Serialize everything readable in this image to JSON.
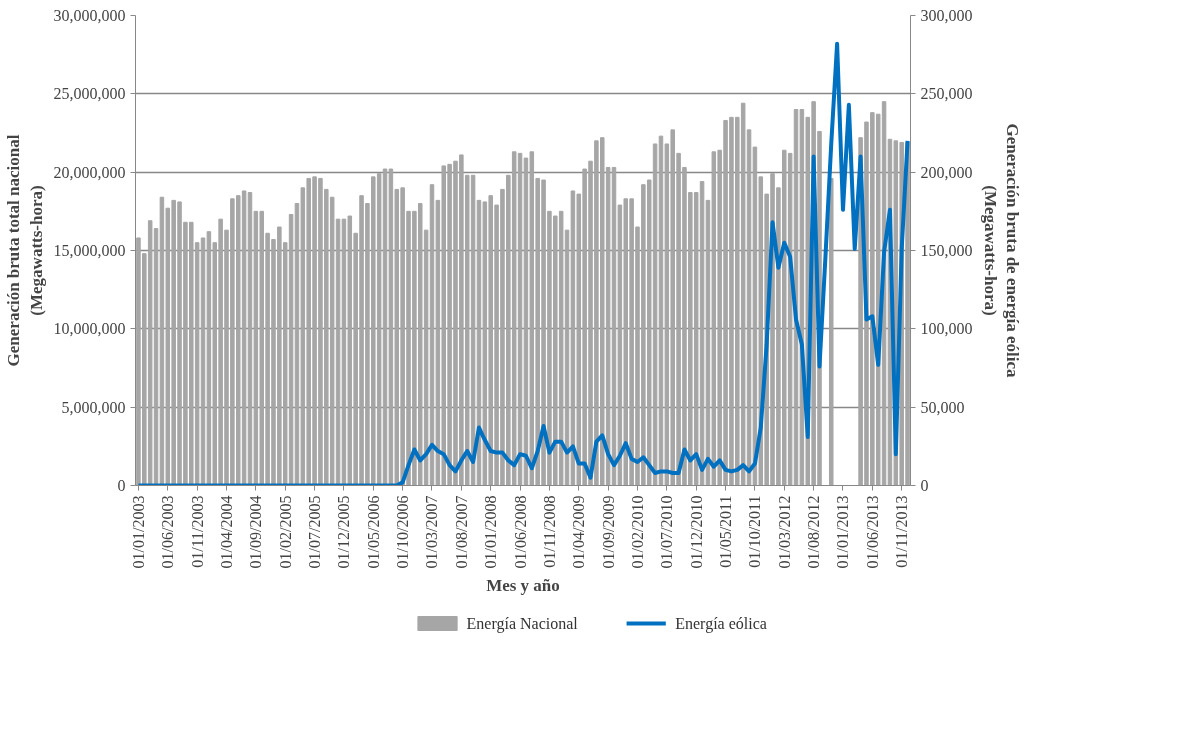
{
  "chart_data": {
    "type": "bar",
    "categories": [
      "01/01/2003",
      null,
      null,
      null,
      null,
      "01/06/2003",
      null,
      null,
      null,
      null,
      "01/11/2003",
      null,
      null,
      null,
      null,
      "01/04/2004",
      null,
      null,
      null,
      null,
      "01/09/2004",
      null,
      null,
      null,
      null,
      "01/02/2005",
      null,
      null,
      null,
      null,
      "01/07/2005",
      null,
      null,
      null,
      null,
      "01/12/2005",
      null,
      null,
      null,
      null,
      "01/05/2006",
      null,
      null,
      null,
      null,
      "01/10/2006",
      null,
      null,
      null,
      null,
      "01/03/2007",
      null,
      null,
      null,
      null,
      "01/08/2007",
      null,
      null,
      null,
      null,
      "01/01/2008",
      null,
      null,
      null,
      null,
      "01/06/2008",
      null,
      null,
      null,
      null,
      "01/11/2008",
      null,
      null,
      null,
      null,
      "01/04/2009",
      null,
      null,
      null,
      null,
      "01/09/2009",
      null,
      null,
      null,
      null,
      "01/02/2010",
      null,
      null,
      null,
      null,
      "01/07/2010",
      null,
      null,
      null,
      null,
      "01/12/2010",
      null,
      null,
      null,
      null,
      "01/05/2011",
      null,
      null,
      null,
      null,
      "01/10/2011",
      null,
      null,
      null,
      null,
      "01/03/2012",
      null,
      null,
      null,
      null,
      "01/08/2012",
      null,
      null,
      null,
      null,
      "01/01/2013",
      null,
      null,
      null,
      null,
      "01/06/2013",
      null,
      null,
      null,
      null,
      "01/11/2013",
      null
    ],
    "series": [
      {
        "name": "Energía Nacional",
        "color": "#a6a6a6",
        "values": [
          15800000,
          14800000,
          16900000,
          16400000,
          18400000,
          17700000,
          18200000,
          18100000,
          16800000,
          16800000,
          15500000,
          15800000,
          16200000,
          15500000,
          17000000,
          16300000,
          18300000,
          18500000,
          18800000,
          18700000,
          17500000,
          17500000,
          16100000,
          15700000,
          16500000,
          15500000,
          17300000,
          18000000,
          19000000,
          19600000,
          19700000,
          19600000,
          18900000,
          18400000,
          17000000,
          17000000,
          17200000,
          16100000,
          18500000,
          18000000,
          19700000,
          19900000,
          20200000,
          20200000,
          18900000,
          19000000,
          17500000,
          17500000,
          18000000,
          16300000,
          19200000,
          18200000,
          20400000,
          20500000,
          20700000,
          21100000,
          19800000,
          19800000,
          18200000,
          18100000,
          18500000,
          17900000,
          18900000,
          19800000,
          21300000,
          21200000,
          20900000,
          21300000,
          19600000,
          19500000,
          17500000,
          17200000,
          17500000,
          16300000,
          18800000,
          18600000,
          20200000,
          20700000,
          22000000,
          22200000,
          20300000,
          20300000,
          17900000,
          18300000,
          18300000,
          16500000,
          19200000,
          19500000,
          21800000,
          22300000,
          21800000,
          22700000,
          21200000,
          20300000,
          18700000,
          18700000,
          19400000,
          18200000,
          21300000,
          21400000,
          23300000,
          23500000,
          23500000,
          24400000,
          22700000,
          21600000,
          19700000,
          18600000,
          19900000,
          19000000,
          21400000,
          21200000,
          24000000,
          24000000,
          23500000,
          24500000,
          22600000,
          null,
          19600000,
          null,
          null,
          null,
          null,
          22200000,
          23200000,
          23800000,
          23700000,
          24500000,
          22100000,
          22000000,
          21900000,
          21900000
        ]
      },
      {
        "name": "Energía eólica",
        "type": "line",
        "axis": "y2",
        "color": "#0070c0",
        "values": [
          0,
          0,
          0,
          0,
          0,
          0,
          0,
          0,
          0,
          0,
          0,
          0,
          0,
          0,
          0,
          0,
          0,
          0,
          0,
          0,
          0,
          0,
          0,
          0,
          0,
          0,
          0,
          0,
          0,
          0,
          0,
          0,
          0,
          0,
          0,
          0,
          0,
          0,
          0,
          0,
          0,
          0,
          0,
          0,
          0,
          2000,
          13000,
          23000,
          16000,
          20000,
          26000,
          22000,
          20000,
          13000,
          9000,
          16000,
          22000,
          15000,
          37000,
          29000,
          22000,
          21000,
          21000,
          16000,
          13000,
          20000,
          19000,
          11000,
          22000,
          38000,
          21000,
          28000,
          28000,
          21000,
          25000,
          14000,
          14000,
          5000,
          28000,
          32000,
          20000,
          13000,
          19000,
          27000,
          17000,
          15000,
          18000,
          13000,
          8000,
          9000,
          9000,
          8000,
          8000,
          23000,
          16000,
          20000,
          10000,
          17000,
          12000,
          16000,
          10000,
          9000,
          10000,
          13000,
          9000,
          14000,
          37000,
          90000,
          168000,
          139000,
          155000,
          146000,
          106000,
          90000,
          31000,
          210000,
          76000,
          145000,
          218000,
          282000,
          176000,
          243000,
          151000,
          210000,
          106000,
          108000,
          77000,
          149000,
          176000,
          20000,
          151000,
          220000
        ]
      }
    ],
    "xlabel": "Mes y año",
    "ylabel": "Generación bruta total nacional\n(Megawatts-hora)",
    "y2label": "Generación bruta de energía eólica\n(Megawatts-hora)",
    "ylim": [
      0,
      30000000
    ],
    "yticks": [
      {
        "value": 0,
        "label": "0"
      },
      {
        "value": 5000000,
        "label": "5,000,000"
      },
      {
        "value": 10000000,
        "label": "10,000,000"
      },
      {
        "value": 15000000,
        "label": "15,000,000"
      },
      {
        "value": 20000000,
        "label": "20,000,000"
      },
      {
        "value": 25000000,
        "label": "25,000,000"
      },
      {
        "value": 30000000,
        "label": "30,000,000"
      }
    ],
    "y2lim": [
      0,
      300000
    ],
    "y2ticks": [
      {
        "value": 0,
        "label": "0"
      },
      {
        "value": 50000,
        "label": "50,000"
      },
      {
        "value": 100000,
        "label": "100,000"
      },
      {
        "value": 150000,
        "label": "150,000"
      },
      {
        "value": 200000,
        "label": "200,000"
      },
      {
        "value": 250000,
        "label": "250,000"
      },
      {
        "value": 300000,
        "label": "300,000"
      }
    ],
    "grid": "y",
    "legend": "bottom"
  }
}
